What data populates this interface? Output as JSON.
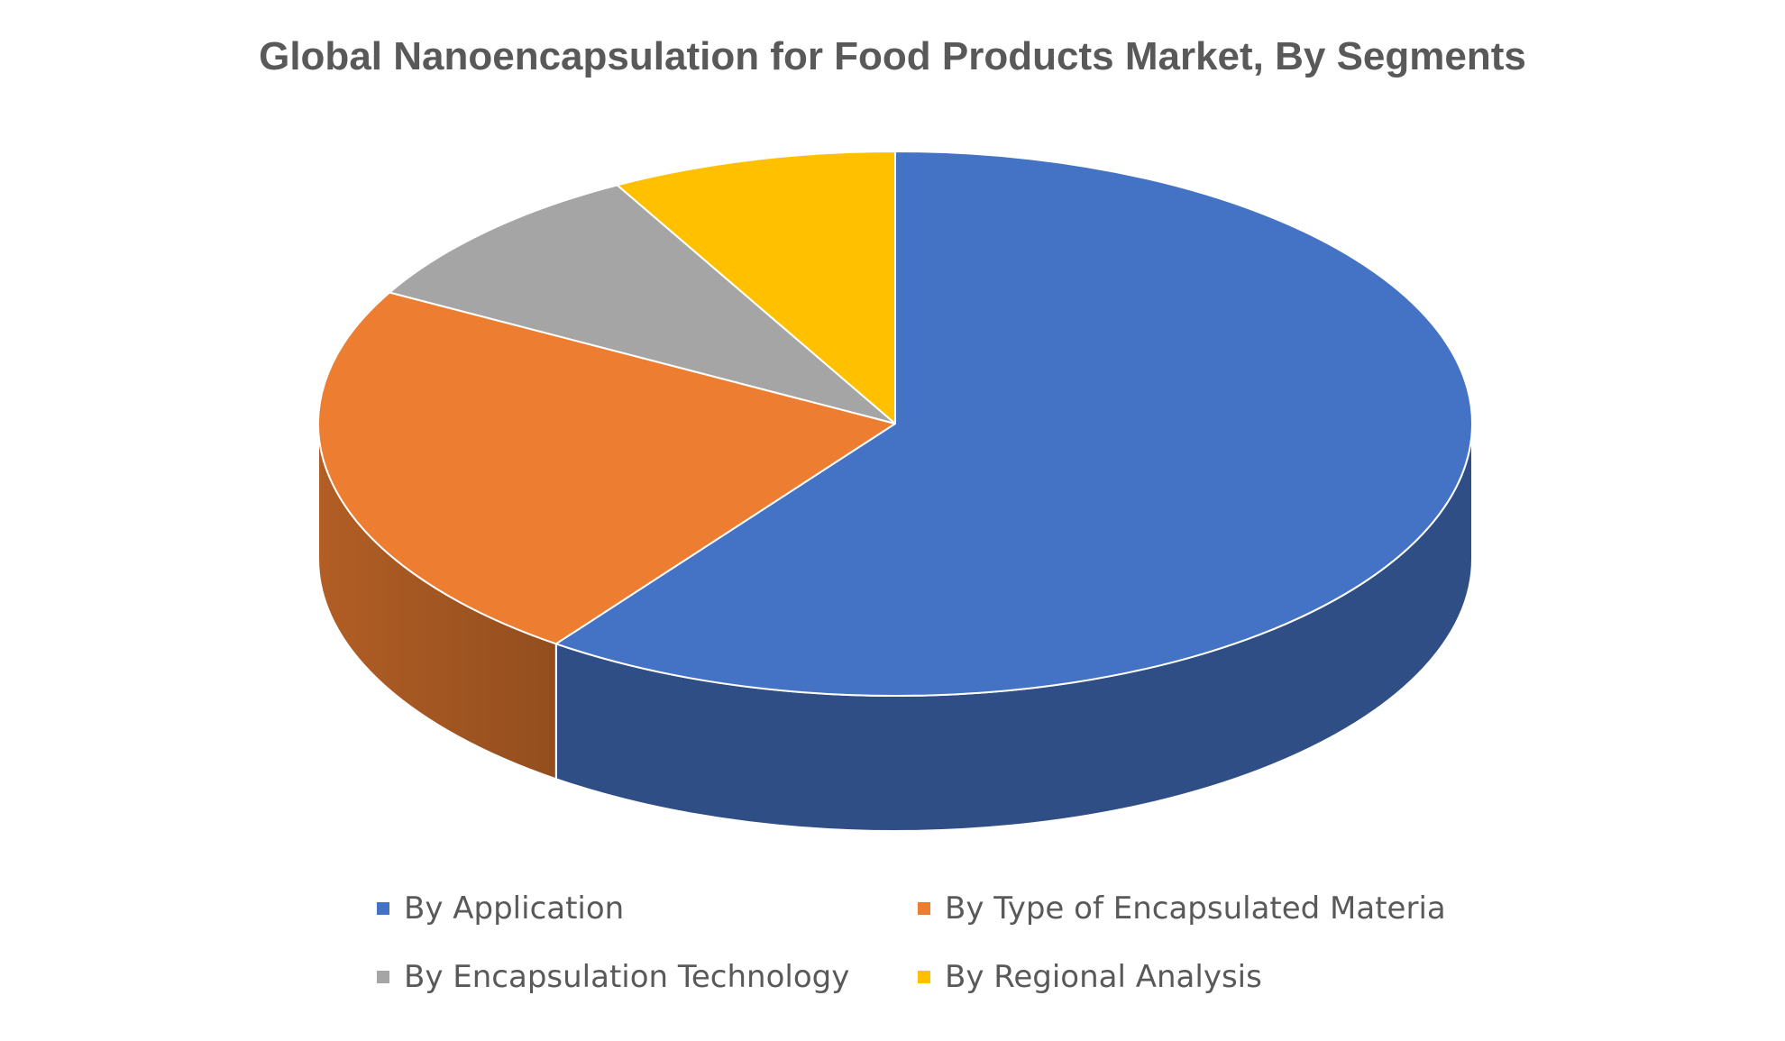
{
  "chart_data": {
    "type": "pie",
    "title": "Global Nanoencapsulation for Food Products Market, By Segments",
    "style": "3d",
    "legend_position": "bottom",
    "series": [
      {
        "name": "By Application",
        "value": 60,
        "color": "#4472C4"
      },
      {
        "name": "By Type of Encapsulated Materia",
        "value": 23,
        "color": "#ED7D31"
      },
      {
        "name": "By Encapsulation Technology",
        "value": 9,
        "color": "#A5A5A5"
      },
      {
        "name": "By Regional Analysis",
        "value": 8,
        "color": "#FFC000"
      }
    ]
  }
}
